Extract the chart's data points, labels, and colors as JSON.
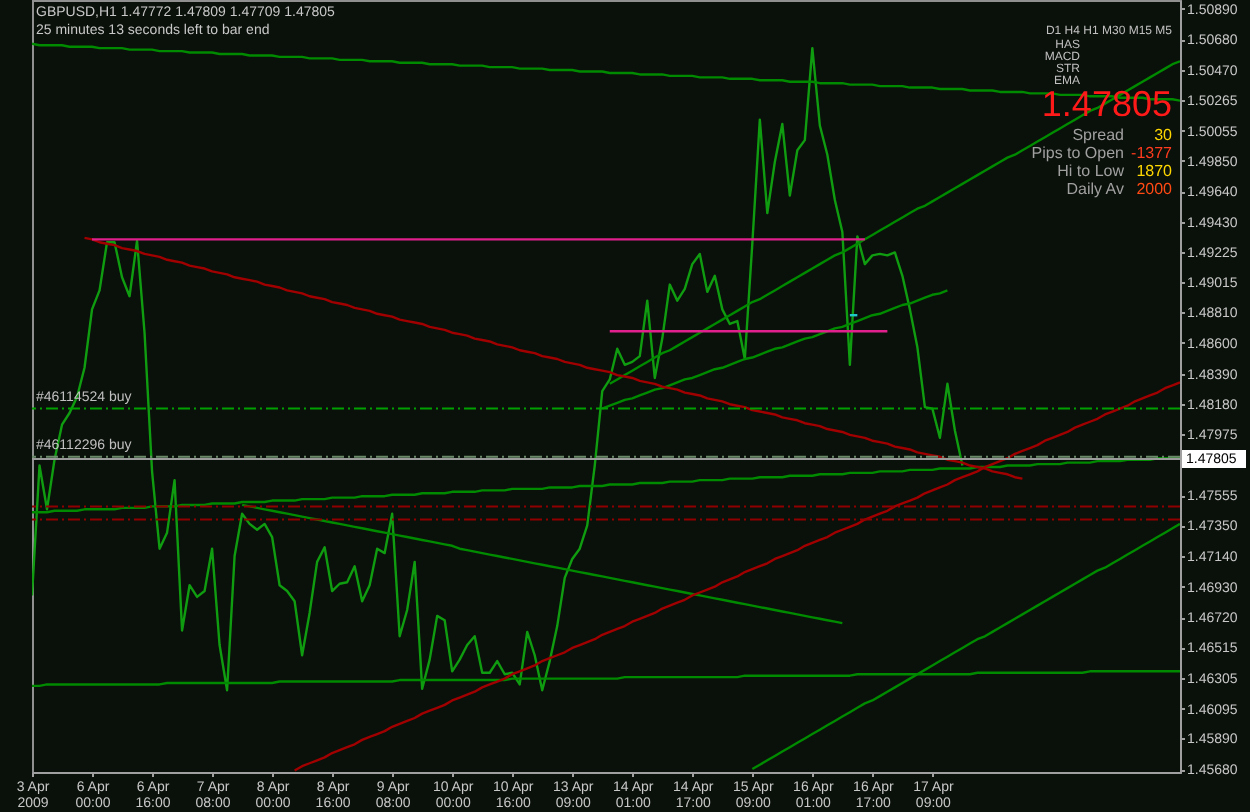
{
  "chart_data": {
    "type": "line",
    "title": "GBPUSD,H1  1.47772 1.47809 1.47709 1.47805",
    "annotations": [
      "25 minutes 13 seconds left to bar end",
      "D1 H4 H1 M30 M15 M5",
      "HAS",
      "MACD",
      "STR",
      "EMA",
      "1.47805",
      "Spread",
      "30",
      "Pips to Open",
      "-1377",
      "Hi to Low",
      "1870",
      "Daily Av",
      "2000"
    ],
    "categories": [
      "3 Apr 2009",
      null,
      null,
      null,
      null,
      null,
      null,
      null,
      "6 Apr 00:00",
      null,
      null,
      null,
      null,
      null,
      null,
      null,
      "6 Apr 16:00",
      null,
      null,
      null,
      null,
      null,
      null,
      null,
      "7 Apr 08:00",
      null,
      null,
      null,
      null,
      null,
      null,
      null,
      "8 Apr 00:00",
      null,
      null,
      null,
      null,
      null,
      null,
      null,
      "8 Apr 16:00",
      null,
      null,
      null,
      null,
      null,
      null,
      null,
      "9 Apr 08:00",
      null,
      null,
      null,
      null,
      null,
      null,
      null,
      "10 Apr 00:00",
      null,
      null,
      null,
      null,
      null,
      null,
      null,
      "10 Apr 16:00",
      null,
      null,
      null,
      null,
      null,
      null,
      null,
      "13 Apr 09:00",
      null,
      null,
      null,
      null,
      null,
      null,
      null,
      "14 Apr 01:00",
      null,
      null,
      null,
      null,
      null,
      null,
      null,
      "14 Apr 17:00",
      null,
      null,
      null,
      null,
      null,
      null,
      null,
      "15 Apr 09:00",
      null,
      null,
      null,
      null,
      null,
      null,
      null,
      "16 Apr 01:00",
      null,
      null,
      null,
      null,
      null,
      null,
      null,
      "16 Apr 17:00",
      null,
      null,
      null,
      null,
      null,
      null,
      null,
      "17 Apr 09:00",
      null,
      null,
      null,
      null,
      null,
      null,
      null,
      null,
      null,
      null,
      null,
      null,
      null,
      null,
      null,
      null,
      null,
      null,
      null,
      null,
      null,
      null,
      null,
      null,
      null,
      null,
      null,
      null,
      null,
      null,
      null,
      null,
      null
    ],
    "ylim": [
      1.4566,
      1.5095
    ],
    "yticks": [
      {
        "value": 1.5089,
        "label": "1.50890"
      },
      {
        "value": 1.5068,
        "label": "1.50680"
      },
      {
        "value": 1.5047,
        "label": "1.50470"
      },
      1.50265,
      1.50055,
      {
        "value": 1.4985,
        "label": "1.49850"
      },
      {
        "value": 1.4964,
        "label": "1.49640"
      },
      {
        "value": 1.4943,
        "label": "1.49430"
      },
      1.49225,
      1.49015,
      {
        "value": 1.4881,
        "label": "1.48810"
      },
      {
        "value": 1.486,
        "label": "1.48600"
      },
      {
        "value": 1.4839,
        "label": "1.48390"
      },
      {
        "value": 1.4818,
        "label": "1.48180"
      },
      1.47975,
      1.47555,
      {
        "value": 1.4735,
        "label": "1.47350"
      },
      {
        "value": 1.4714,
        "label": "1.47140"
      },
      {
        "value": 1.4693,
        "label": "1.46930"
      },
      {
        "value": 1.4672,
        "label": "1.46720"
      },
      1.46515,
      1.46305,
      1.46095,
      {
        "value": 1.4589,
        "label": "1.45890"
      },
      {
        "value": 1.4568,
        "label": "1.45680"
      }
    ],
    "series": [
      {
        "color": "#109c10",
        "values": [
          1.4687,
          1.4776,
          1.4746,
          1.478,
          1.4804,
          1.4812,
          1.4823,
          1.4843,
          1.4883,
          1.4896,
          1.4929,
          1.4929,
          1.4905,
          1.4892,
          1.493,
          1.4867,
          1.4772,
          1.4719,
          1.473,
          1.4766,
          1.4663,
          1.4694,
          1.4686,
          1.469,
          1.4719,
          1.4653,
          1.4622,
          1.4714,
          1.4743,
          1.4736,
          1.4732,
          1.4736,
          1.4727,
          1.4694,
          1.469,
          1.4683,
          1.4646,
          1.4675,
          1.471,
          1.472,
          1.469,
          1.4695,
          1.4696,
          1.4707,
          1.4683,
          1.4694,
          1.4719,
          1.4716,
          1.4743,
          1.4659,
          1.4677,
          1.471,
          1.4623,
          1.4643,
          1.4673,
          1.467,
          1.4635,
          1.4643,
          1.4653,
          1.4659,
          1.4634,
          1.4634,
          1.4642,
          1.4633,
          1.4634,
          1.4626,
          1.4662,
          1.4646,
          1.4622,
          1.4642,
          1.4666,
          1.4699,
          1.4712,
          1.4719,
          1.4735,
          1.4776,
          1.4827,
          1.4835,
          1.4856,
          1.4845,
          1.4847,
          1.4851,
          1.4889,
          1.4836,
          1.4863,
          1.49,
          1.4889,
          1.4897,
          1.4914,
          1.4921,
          1.4895,
          1.4906,
          1.4883,
          1.4873,
          1.4875,
          1.4849,
          1.4928,
          1.5013,
          1.4949,
          1.4984,
          1.501,
          1.4961,
          1.4992,
          1.4999,
          1.5062,
          1.5009,
          1.4989,
          1.4958,
          1.4936,
          1.4845,
          1.4933,
          1.4914,
          1.492,
          1.4921,
          1.492,
          1.4922,
          1.4906,
          1.4883,
          1.4857,
          1.4816,
          1.4815,
          1.4795,
          1.4832,
          1.48,
          1.4776,
          null,
          null,
          null,
          null,
          null,
          null,
          null,
          null,
          null,
          null,
          null,
          null,
          null,
          null,
          null,
          null,
          null,
          null,
          null,
          null,
          null,
          null,
          null,
          null,
          null,
          null,
          null,
          null,
          null
        ]
      },
      {
        "color": "#008a00",
        "values": [
          1.5065,
          1.5064,
          1.5064,
          1.5064,
          1.5064,
          1.5063,
          1.5063,
          1.5063,
          1.5063,
          1.5062,
          1.5062,
          1.5062,
          1.5062,
          1.5061,
          1.5061,
          1.5061,
          1.5061,
          1.506,
          1.506,
          1.506,
          1.506,
          1.5059,
          1.5059,
          1.5059,
          1.5059,
          1.5058,
          1.5058,
          1.5058,
          1.5058,
          1.5057,
          1.5057,
          1.5057,
          1.5057,
          1.5056,
          1.5056,
          1.5056,
          1.5056,
          1.5055,
          1.5055,
          1.5055,
          1.5055,
          1.5054,
          1.5054,
          1.5054,
          1.5054,
          1.5053,
          1.5053,
          1.5053,
          1.5053,
          1.5052,
          1.5052,
          1.5052,
          1.5052,
          1.5051,
          1.5051,
          1.5051,
          1.5051,
          1.505,
          1.505,
          1.505,
          1.505,
          1.5049,
          1.5049,
          1.5049,
          1.5049,
          1.5048,
          1.5048,
          1.5048,
          1.5048,
          1.5047,
          1.5047,
          1.5047,
          1.5047,
          1.5046,
          1.5046,
          1.5046,
          1.5046,
          1.5045,
          1.5045,
          1.5045,
          1.5045,
          1.5044,
          1.5044,
          1.5044,
          1.5044,
          1.5043,
          1.5043,
          1.5043,
          1.5043,
          1.5042,
          1.5042,
          1.5042,
          1.5042,
          1.5041,
          1.5041,
          1.5041,
          1.5041,
          1.504,
          1.504,
          1.504,
          1.504,
          1.5039,
          1.5039,
          1.5039,
          1.5039,
          1.5038,
          1.5038,
          1.5038,
          1.5038,
          1.5037,
          1.5037,
          1.5037,
          1.5037,
          1.5036,
          1.5036,
          1.5036,
          1.5036,
          1.5035,
          1.5035,
          1.5035,
          1.5035,
          1.5034,
          1.5034,
          1.5034,
          1.5034,
          1.5033,
          1.5033,
          1.5033,
          1.5033,
          1.5032,
          1.5032,
          1.5032,
          1.5032,
          1.5031,
          1.5031,
          1.5031,
          1.5031,
          1.503,
          1.503,
          1.503,
          1.503,
          1.5029,
          1.5029,
          1.5029,
          1.5029,
          1.5028,
          1.5028,
          1.5028,
          1.5028,
          1.5027,
          1.5027,
          1.5027,
          1.5027,
          1.5026
        ]
      },
      {
        "color": "#008a00",
        "values": [
          null,
          null,
          null,
          null,
          null,
          null,
          null,
          null,
          null,
          null,
          null,
          null,
          null,
          null,
          null,
          null,
          null,
          null,
          null,
          null,
          null,
          null,
          null,
          null,
          null,
          null,
          null,
          null,
          null,
          null,
          null,
          null,
          null,
          null,
          null,
          null,
          null,
          null,
          null,
          null,
          null,
          null,
          null,
          null,
          null,
          null,
          null,
          null,
          null,
          null,
          null,
          null,
          null,
          null,
          null,
          null,
          null,
          null,
          null,
          null,
          null,
          null,
          null,
          null,
          null,
          null,
          null,
          null,
          null,
          null,
          null,
          null,
          null,
          null,
          null,
          null,
          null,
          1.4832,
          1.4835,
          1.4838,
          1.4841,
          1.4844,
          1.4847,
          1.485,
          1.4853,
          1.4855,
          1.4858,
          1.4861,
          1.4864,
          1.4867,
          1.487,
          1.4873,
          1.4876,
          1.4879,
          1.4882,
          1.4885,
          1.4888,
          1.489,
          1.4893,
          1.4896,
          1.4899,
          1.4902,
          1.4905,
          1.4908,
          1.4911,
          1.4914,
          1.4917,
          1.492,
          1.4922,
          1.4925,
          1.4928,
          1.4931,
          1.4934,
          1.4937,
          1.494,
          1.4943,
          1.4946,
          1.4949,
          1.4952,
          1.4954,
          1.4957,
          1.496,
          1.4963,
          1.4966,
          1.4969,
          1.4972,
          1.4975,
          1.4978,
          1.4981,
          1.4984,
          1.4987,
          1.4989,
          1.4992,
          1.4995,
          1.4998,
          1.5001,
          1.5004,
          1.5007,
          1.501,
          1.5013,
          1.5016,
          1.5019,
          1.5021,
          1.5024,
          1.5027,
          1.503,
          1.5033,
          1.5036,
          1.5039,
          1.5042,
          1.5045,
          1.5048,
          1.5051,
          1.5053
        ]
      },
      {
        "color": "#008a00",
        "values": [
          null,
          null,
          null,
          null,
          null,
          null,
          null,
          null,
          null,
          null,
          null,
          null,
          null,
          null,
          null,
          null,
          null,
          null,
          null,
          null,
          null,
          null,
          null,
          null,
          null,
          null,
          null,
          null,
          null,
          null,
          null,
          null,
          null,
          null,
          null,
          null,
          null,
          null,
          null,
          null,
          null,
          null,
          null,
          null,
          null,
          null,
          null,
          null,
          null,
          null,
          null,
          null,
          null,
          null,
          null,
          null,
          null,
          null,
          null,
          null,
          null,
          null,
          null,
          null,
          null,
          null,
          null,
          null,
          null,
          null,
          null,
          null,
          null,
          null,
          null,
          null,
          1.4815,
          1.4817,
          1.4819,
          1.4821,
          1.4822,
          1.4824,
          1.4826,
          1.4828,
          1.4829,
          1.4831,
          1.4833,
          1.4835,
          1.4836,
          1.4838,
          1.484,
          1.4842,
          1.4843,
          1.4845,
          1.4847,
          1.4849,
          1.485,
          1.4852,
          1.4854,
          1.4856,
          1.4857,
          1.4859,
          1.4861,
          1.4863,
          1.4864,
          1.4866,
          1.4868,
          1.487,
          1.4871,
          1.4873,
          1.4875,
          1.4877,
          1.4879,
          1.488,
          1.4882,
          1.4884,
          1.4886,
          1.4887,
          1.4889,
          1.4891,
          1.4893,
          1.4894,
          1.4896,
          null,
          null,
          null,
          null,
          null,
          null,
          null,
          null,
          null,
          null,
          null,
          null,
          null,
          null,
          null,
          null,
          null,
          null,
          null,
          null,
          null,
          null,
          null,
          null,
          null,
          null,
          null,
          null,
          null,
          null,
          null
        ]
      },
      {
        "color": "#008a00",
        "values": [
          1.4744,
          1.4744,
          1.4744,
          1.4745,
          1.4745,
          1.4745,
          1.4745,
          1.4746,
          1.4746,
          1.4746,
          1.4746,
          1.4746,
          1.4747,
          1.4747,
          1.4747,
          1.4747,
          1.4748,
          1.4748,
          1.4748,
          1.4748,
          1.4749,
          1.4749,
          1.4749,
          1.4749,
          1.475,
          1.475,
          1.475,
          1.475,
          1.4751,
          1.4751,
          1.4751,
          1.4751,
          1.4752,
          1.4752,
          1.4752,
          1.4752,
          1.4753,
          1.4753,
          1.4753,
          1.4753,
          1.4754,
          1.4754,
          1.4754,
          1.4754,
          1.4755,
          1.4755,
          1.4755,
          1.4755,
          1.4756,
          1.4756,
          1.4756,
          1.4756,
          1.4757,
          1.4757,
          1.4757,
          1.4757,
          1.4758,
          1.4758,
          1.4758,
          1.4758,
          1.4759,
          1.4759,
          1.4759,
          1.4759,
          1.476,
          1.476,
          1.476,
          1.476,
          1.476,
          1.4761,
          1.4761,
          1.4761,
          1.4761,
          1.4762,
          1.4762,
          1.4762,
          1.4762,
          1.4763,
          1.4763,
          1.4763,
          1.4763,
          1.4764,
          1.4764,
          1.4764,
          1.4764,
          1.4765,
          1.4765,
          1.4765,
          1.4765,
          1.4766,
          1.4766,
          1.4766,
          1.4766,
          1.4767,
          1.4767,
          1.4767,
          1.4767,
          1.4768,
          1.4768,
          1.4768,
          1.4768,
          1.4769,
          1.4769,
          1.4769,
          1.4769,
          1.477,
          1.477,
          1.477,
          1.477,
          1.4771,
          1.4771,
          1.4771,
          1.4771,
          1.4772,
          1.4772,
          1.4772,
          1.4772,
          1.4773,
          1.4773,
          1.4773,
          1.4773,
          1.4774,
          1.4774,
          1.4774,
          1.4774,
          1.4774,
          1.4775,
          1.4775,
          1.4775,
          1.4775,
          1.4776,
          1.4776,
          1.4776,
          1.4776,
          1.4777,
          1.4777,
          1.4777,
          1.4777,
          1.4778,
          1.4778,
          1.4778,
          1.4778,
          1.4779,
          1.4779,
          1.4779,
          1.4779,
          1.478,
          1.478,
          1.478,
          1.478,
          1.4781,
          1.4781,
          1.4781,
          1.4781
        ]
      },
      {
        "color": "#008a00",
        "values": [
          null,
          null,
          null,
          null,
          null,
          null,
          null,
          null,
          null,
          null,
          null,
          null,
          null,
          null,
          null,
          null,
          null,
          null,
          null,
          null,
          null,
          null,
          null,
          null,
          null,
          null,
          null,
          null,
          1.4749,
          1.4748,
          1.4747,
          1.4746,
          1.4745,
          1.4744,
          1.4743,
          1.4742,
          1.4741,
          1.474,
          1.4739,
          1.4738,
          1.4737,
          1.4736,
          1.4735,
          1.4734,
          1.4733,
          1.4732,
          1.4731,
          1.473,
          1.4729,
          1.4728,
          1.4727,
          1.4726,
          1.4725,
          1.4724,
          1.4723,
          1.4722,
          1.4721,
          1.4719,
          1.4718,
          1.4717,
          1.4716,
          1.4715,
          1.4714,
          1.4713,
          1.4712,
          1.4711,
          1.471,
          1.4709,
          1.4708,
          1.4707,
          1.4706,
          1.4705,
          1.4704,
          1.4703,
          1.4702,
          1.4701,
          1.47,
          1.4699,
          1.4698,
          1.4697,
          1.4696,
          1.4695,
          1.4694,
          1.4693,
          1.4692,
          1.4691,
          1.469,
          1.4689,
          1.4688,
          1.4687,
          1.4686,
          1.4685,
          1.4684,
          1.4683,
          1.4682,
          1.4681,
          1.468,
          1.4679,
          1.4678,
          1.4677,
          1.4676,
          1.4675,
          1.4674,
          1.4673,
          1.4672,
          1.4671,
          1.467,
          1.4669,
          1.4668,
          null,
          null,
          null,
          null,
          null,
          null,
          null,
          null,
          null,
          null,
          null,
          null,
          null,
          null,
          null,
          null,
          null,
          null,
          null,
          null,
          null,
          null,
          null,
          null,
          null,
          null,
          null,
          null,
          null,
          null,
          null,
          null,
          null,
          null,
          null,
          null,
          null,
          null,
          null,
          null,
          null,
          null,
          null,
          null,
          null
        ]
      },
      {
        "color": "#008a00",
        "values": [
          1.4625,
          1.4625,
          1.4626,
          1.4626,
          1.4626,
          1.4626,
          1.4626,
          1.4626,
          1.4626,
          1.4626,
          1.4626,
          1.4626,
          1.4626,
          1.4626,
          1.4626,
          1.4626,
          1.4626,
          1.4626,
          1.4627,
          1.4627,
          1.4627,
          1.4627,
          1.4627,
          1.4627,
          1.4627,
          1.4627,
          1.4627,
          1.4627,
          1.4627,
          1.4627,
          1.4627,
          1.4627,
          1.4627,
          1.4628,
          1.4628,
          1.4628,
          1.4628,
          1.4628,
          1.4628,
          1.4628,
          1.4628,
          1.4628,
          1.4628,
          1.4628,
          1.4628,
          1.4628,
          1.4628,
          1.4628,
          1.4628,
          1.4629,
          1.4629,
          1.4629,
          1.4629,
          1.4629,
          1.4629,
          1.4629,
          1.4629,
          1.4629,
          1.4629,
          1.4629,
          1.4629,
          1.4629,
          1.4629,
          1.4629,
          1.463,
          1.463,
          1.463,
          1.463,
          1.463,
          1.463,
          1.463,
          1.463,
          1.463,
          1.463,
          1.463,
          1.463,
          1.463,
          1.463,
          1.463,
          1.4631,
          1.4631,
          1.4631,
          1.4631,
          1.4631,
          1.4631,
          1.4631,
          1.4631,
          1.4631,
          1.4631,
          1.4631,
          1.4631,
          1.4631,
          1.4631,
          1.4631,
          1.4631,
          1.4632,
          1.4632,
          1.4632,
          1.4632,
          1.4632,
          1.4632,
          1.4632,
          1.4632,
          1.4632,
          1.4632,
          1.4632,
          1.4632,
          1.4632,
          1.4632,
          1.4632,
          1.4633,
          1.4633,
          1.4633,
          1.4633,
          1.4633,
          1.4633,
          1.4633,
          1.4633,
          1.4633,
          1.4633,
          1.4633,
          1.4633,
          1.4633,
          1.4633,
          1.4633,
          1.4633,
          1.4634,
          1.4634,
          1.4634,
          1.4634,
          1.4634,
          1.4634,
          1.4634,
          1.4634,
          1.4634,
          1.4634,
          1.4634,
          1.4634,
          1.4634,
          1.4634,
          1.4634,
          1.4635,
          1.4635,
          1.4635,
          1.4635,
          1.4635,
          1.4635,
          1.4635,
          1.4635,
          1.4635,
          1.4635,
          1.4635,
          1.4635,
          1.4635
        ]
      },
      {
        "color": "#008a00",
        "values": [
          null,
          null,
          null,
          null,
          null,
          null,
          null,
          null,
          null,
          null,
          null,
          null,
          null,
          null,
          null,
          null,
          null,
          null,
          null,
          null,
          null,
          null,
          null,
          null,
          null,
          null,
          null,
          null,
          null,
          null,
          null,
          null,
          null,
          null,
          null,
          null,
          null,
          null,
          null,
          null,
          null,
          null,
          null,
          null,
          null,
          null,
          null,
          null,
          null,
          null,
          null,
          null,
          null,
          null,
          null,
          null,
          null,
          null,
          null,
          null,
          null,
          null,
          null,
          null,
          null,
          null,
          null,
          null,
          null,
          null,
          null,
          null,
          null,
          null,
          null,
          null,
          null,
          null,
          null,
          null,
          null,
          null,
          null,
          null,
          null,
          null,
          null,
          null,
          null,
          null,
          null,
          null,
          null,
          null,
          null,
          null,
          1.4568,
          1.4571,
          1.4574,
          1.4577,
          1.458,
          1.4583,
          1.4586,
          1.4589,
          1.4592,
          1.4595,
          1.4598,
          1.4601,
          1.4604,
          1.4607,
          1.461,
          1.4613,
          1.4615,
          1.4618,
          1.4621,
          1.4624,
          1.4627,
          1.463,
          1.4633,
          1.4636,
          1.4639,
          1.4642,
          1.4645,
          1.4648,
          1.4651,
          1.4654,
          1.4657,
          1.4659,
          1.4662,
          1.4665,
          1.4668,
          1.4671,
          1.4674,
          1.4677,
          1.468,
          1.4683,
          1.4686,
          1.4689,
          1.4692,
          1.4695,
          1.4698,
          1.4701,
          1.4704,
          1.4706,
          1.4709,
          1.4712,
          1.4715,
          1.4718,
          1.4721,
          1.4724,
          1.4727,
          1.473,
          1.4733,
          1.4736
        ]
      },
      {
        "color": "#a00000",
        "values": [
          null,
          null,
          null,
          null,
          null,
          null,
          null,
          1.4932,
          1.4931,
          1.4929,
          1.4928,
          1.4927,
          1.4925,
          1.4924,
          1.4923,
          1.4921,
          1.492,
          1.4919,
          1.4917,
          1.4916,
          1.4915,
          1.4913,
          1.4912,
          1.4911,
          1.4909,
          1.4908,
          1.4907,
          1.4905,
          1.4904,
          1.4903,
          1.4902,
          1.49,
          1.4899,
          1.4898,
          1.4896,
          1.4895,
          1.4894,
          1.4892,
          1.4891,
          1.489,
          1.4888,
          1.4887,
          1.4886,
          1.4884,
          1.4883,
          1.4882,
          1.488,
          1.4879,
          1.4878,
          1.4876,
          1.4875,
          1.4874,
          1.4873,
          1.4871,
          1.487,
          1.4869,
          1.4867,
          1.4866,
          1.4865,
          1.4863,
          1.4862,
          1.4861,
          1.4859,
          1.4858,
          1.4857,
          1.4855,
          1.4854,
          1.4853,
          1.4851,
          1.485,
          1.4849,
          1.4847,
          1.4846,
          1.4845,
          1.4843,
          1.4842,
          1.4841,
          1.484,
          1.4838,
          1.4837,
          1.4836,
          1.4834,
          1.4833,
          1.4832,
          1.483,
          1.4829,
          1.4828,
          1.4826,
          1.4825,
          1.4824,
          1.4822,
          1.4821,
          1.482,
          1.4818,
          1.4817,
          1.4816,
          1.4814,
          1.4813,
          1.4812,
          1.4811,
          1.4809,
          1.4808,
          1.4807,
          1.4805,
          1.4804,
          1.4803,
          1.4801,
          1.48,
          1.4799,
          1.4797,
          1.4796,
          1.4795,
          1.4793,
          1.4792,
          1.4791,
          1.4789,
          1.4788,
          1.4787,
          1.4785,
          1.4784,
          1.4783,
          1.4782,
          1.478,
          1.4779,
          1.4778,
          1.4776,
          1.4775,
          1.4774,
          1.4772,
          1.4771,
          1.477,
          1.4768,
          1.4767,
          null,
          null,
          null,
          null,
          null,
          null,
          null,
          null,
          null,
          null,
          null,
          null,
          null,
          null,
          null,
          null,
          null,
          null,
          null,
          null,
          null
        ]
      },
      {
        "color": "#a00000",
        "values": [
          null,
          null,
          null,
          null,
          null,
          null,
          null,
          null,
          null,
          null,
          null,
          null,
          null,
          null,
          null,
          null,
          null,
          null,
          null,
          null,
          null,
          null,
          null,
          null,
          null,
          null,
          null,
          null,
          null,
          null,
          null,
          null,
          null,
          null,
          null,
          1.4567,
          1.457,
          1.4572,
          1.4574,
          1.4576,
          1.4579,
          1.4581,
          1.4583,
          1.4585,
          1.4588,
          1.459,
          1.4592,
          1.4594,
          1.4597,
          1.4599,
          1.4601,
          1.4603,
          1.4606,
          1.4608,
          1.461,
          1.4612,
          1.4615,
          1.4617,
          1.4619,
          1.4621,
          1.4624,
          1.4626,
          1.4628,
          1.463,
          1.4633,
          1.4635,
          1.4637,
          1.4639,
          1.4642,
          1.4644,
          1.4646,
          1.4648,
          1.4651,
          1.4653,
          1.4655,
          1.4657,
          1.466,
          1.4662,
          1.4664,
          1.4666,
          1.4669,
          1.4671,
          1.4673,
          1.4675,
          1.4678,
          1.468,
          1.4682,
          1.4684,
          1.4687,
          1.4689,
          1.4691,
          1.4693,
          1.4696,
          1.4698,
          1.47,
          1.4703,
          1.4705,
          1.4707,
          1.4709,
          1.4712,
          1.4714,
          1.4716,
          1.4718,
          1.4721,
          1.4723,
          1.4725,
          1.4727,
          1.473,
          1.4732,
          1.4734,
          1.4736,
          1.4739,
          1.4741,
          1.4743,
          1.4745,
          1.4748,
          1.475,
          1.4752,
          1.4754,
          1.4757,
          1.4759,
          1.4761,
          1.4763,
          1.4766,
          1.4768,
          1.477,
          1.4772,
          1.4775,
          1.4777,
          1.4779,
          1.4781,
          1.4784,
          1.4786,
          1.4788,
          1.479,
          1.4793,
          1.4795,
          1.4797,
          1.4799,
          1.4802,
          1.4804,
          1.4806,
          1.4808,
          1.4811,
          1.4813,
          1.4815,
          1.4817,
          1.482,
          1.4822,
          1.4824,
          1.4826,
          1.4829,
          1.4831,
          1.4833
        ]
      },
      {
        "color": "#e0208c",
        "values": [
          null,
          null,
          null,
          null,
          null,
          null,
          null,
          null,
          1.4931,
          1.4931,
          1.4931,
          1.4931,
          1.4931,
          1.4931,
          1.4931,
          1.4931,
          1.4931,
          1.4931,
          1.4931,
          1.4931,
          1.4931,
          1.4931,
          1.4931,
          1.4931,
          1.4931,
          1.4931,
          1.4931,
          1.4931,
          1.4931,
          1.4931,
          1.4931,
          1.4931,
          1.4931,
          1.4931,
          1.4931,
          1.4931,
          1.4931,
          1.4931,
          1.4931,
          1.4931,
          1.4931,
          1.4931,
          1.4931,
          1.4931,
          1.4931,
          1.4931,
          1.4931,
          1.4931,
          1.4931,
          1.4931,
          1.4931,
          1.4931,
          1.4931,
          1.4931,
          1.4931,
          1.4931,
          1.4931,
          1.4931,
          1.4931,
          1.4931,
          1.4931,
          1.4931,
          1.4931,
          1.4931,
          1.4931,
          1.4931,
          1.4931,
          1.4931,
          1.4931,
          1.4931,
          1.4931,
          1.4931,
          1.4931,
          1.4931,
          1.4931,
          1.4931,
          1.4931,
          1.4931,
          1.4931,
          1.4931,
          1.4931,
          1.4931,
          1.4931,
          1.4931,
          1.4931,
          1.4931,
          1.4931,
          1.4931,
          1.4931,
          1.4931,
          1.4931,
          1.4931,
          1.4931,
          1.4931,
          1.4931,
          1.4931,
          1.4931,
          1.4931,
          1.4931,
          1.4931,
          1.4931,
          1.4931,
          1.4931,
          1.4931,
          1.4931,
          1.4931,
          1.4931,
          1.4931,
          1.4931,
          1.4931,
          1.4931,
          1.4931,
          null,
          null,
          null,
          null,
          null,
          null,
          null,
          null,
          null,
          null,
          null,
          null,
          null,
          null,
          null,
          null,
          null,
          null,
          null,
          null,
          null,
          null,
          null,
          null,
          null,
          null,
          null,
          null,
          null,
          null,
          null,
          null,
          null,
          null,
          null,
          null,
          null,
          null,
          null,
          null,
          null,
          null
        ]
      },
      {
        "color": "#e0208c",
        "values": [
          null,
          null,
          null,
          null,
          null,
          null,
          null,
          null,
          null,
          null,
          null,
          null,
          null,
          null,
          null,
          null,
          null,
          null,
          null,
          null,
          null,
          null,
          null,
          null,
          null,
          null,
          null,
          null,
          null,
          null,
          null,
          null,
          null,
          null,
          null,
          null,
          null,
          null,
          null,
          null,
          null,
          null,
          null,
          null,
          null,
          null,
          null,
          null,
          null,
          null,
          null,
          null,
          null,
          null,
          null,
          null,
          null,
          null,
          null,
          null,
          null,
          null,
          null,
          null,
          null,
          null,
          null,
          null,
          null,
          null,
          null,
          null,
          null,
          null,
          null,
          null,
          null,
          1.4868,
          1.4868,
          1.4868,
          1.4868,
          1.4868,
          1.4868,
          1.4868,
          1.4868,
          1.4868,
          1.4868,
          1.4868,
          1.4868,
          1.4868,
          1.4868,
          1.4868,
          1.4868,
          1.4868,
          1.4868,
          1.4868,
          1.4868,
          1.4868,
          1.4868,
          1.4868,
          1.4868,
          1.4868,
          1.4868,
          1.4868,
          1.4868,
          1.4868,
          1.4868,
          1.4868,
          1.4868,
          1.4868,
          1.4868,
          1.4868,
          1.4868,
          1.4868,
          1.4868,
          null,
          null,
          null,
          null,
          null,
          null,
          null,
          null,
          null,
          null,
          null,
          null,
          null,
          null,
          null,
          null,
          null,
          null,
          null,
          null,
          null,
          null,
          null,
          null,
          null,
          null,
          null,
          null,
          null,
          null,
          null,
          null,
          null,
          null,
          null,
          null,
          null,
          null,
          null
        ]
      },
      {
        "color": "#20c8c8",
        "values": [
          null,
          null,
          null,
          null,
          null,
          null,
          null,
          null,
          null,
          null,
          null,
          null,
          null,
          null,
          null,
          null,
          null,
          null,
          null,
          null,
          null,
          null,
          null,
          null,
          null,
          null,
          null,
          null,
          null,
          null,
          null,
          null,
          null,
          null,
          null,
          null,
          null,
          null,
          null,
          null,
          null,
          null,
          null,
          null,
          null,
          null,
          null,
          null,
          null,
          null,
          null,
          null,
          null,
          null,
          null,
          null,
          null,
          null,
          null,
          null,
          null,
          null,
          null,
          null,
          null,
          null,
          null,
          null,
          null,
          null,
          null,
          null,
          null,
          null,
          null,
          null,
          null,
          null,
          null,
          null,
          null,
          null,
          null,
          null,
          null,
          null,
          null,
          null,
          null,
          null,
          null,
          null,
          null,
          null,
          null,
          null,
          null,
          null,
          null,
          null,
          null,
          null,
          null,
          null,
          null,
          null,
          null,
          null,
          null,
          1.4879,
          1.4879,
          null,
          null,
          null,
          null,
          null,
          null,
          null,
          null,
          null,
          null,
          null,
          null,
          null,
          null,
          null,
          null,
          null,
          null,
          null,
          null,
          null,
          null,
          null,
          null,
          null,
          null,
          null,
          null,
          null,
          null,
          null,
          null,
          null,
          null,
          null,
          null,
          null,
          null,
          null,
          null,
          null,
          null,
          null
        ]
      }
    ],
    "ref_lines": [
      {
        "axis": "y",
        "value": 1.4815,
        "label": "#46114524 buy",
        "color": "#00a000",
        "line_style": "dashed"
      },
      {
        "axis": "y",
        "value": 1.4782,
        "label": "#46112296 buy",
        "color": "#6a8a6a",
        "line_style": "dashed"
      },
      {
        "axis": "y",
        "value": 1.47805,
        "label": "1.47805",
        "color": "#9a9a9a"
      },
      {
        "axis": "y",
        "value": 1.4748,
        "color": "#900000",
        "line_style": "dashed"
      },
      {
        "axis": "y",
        "value": 1.4739,
        "color": "#900000",
        "line_style": "dashed"
      }
    ]
  }
}
